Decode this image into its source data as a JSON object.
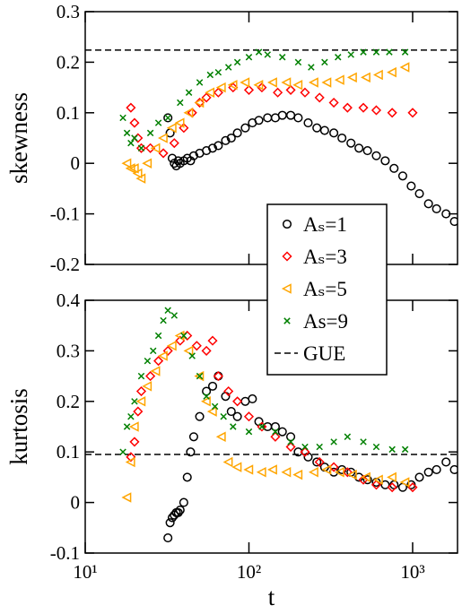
{
  "chart_data": [
    {
      "type": "scatter",
      "ylabel": "skewness",
      "xlog": true,
      "xlim": [
        10,
        1880
      ],
      "xticks": [
        10,
        100,
        1000
      ],
      "show_xtick_labels": false,
      "ylim": [
        -0.2,
        0.3
      ],
      "yticks": [
        -0.2,
        -0.1,
        0,
        0.1,
        0.2,
        0.3
      ],
      "reference_line": {
        "name": "GUE",
        "value": 0.224,
        "color": "#000000",
        "style": "dashed"
      },
      "series": [
        {
          "name": "Aₛ=1",
          "color": "#000000",
          "marker": "circle",
          "x": [
            32,
            33,
            34,
            35,
            36,
            37,
            38,
            40,
            42,
            44,
            46,
            50,
            55,
            60,
            65,
            72,
            78,
            85,
            95,
            105,
            115,
            130,
            145,
            160,
            180,
            200,
            230,
            260,
            290,
            330,
            370,
            420,
            470,
            530,
            600,
            680,
            770,
            870,
            980,
            1100,
            1250,
            1400,
            1600,
            1800
          ],
          "values": [
            0.09,
            0.06,
            0.01,
            0,
            -0.005,
            0.005,
            0,
            0.005,
            0.01,
            0.005,
            0.015,
            0.02,
            0.025,
            0.03,
            0.035,
            0.045,
            0.05,
            0.06,
            0.07,
            0.08,
            0.085,
            0.09,
            0.09,
            0.095,
            0.095,
            0.09,
            0.08,
            0.07,
            0.065,
            0.06,
            0.05,
            0.04,
            0.03,
            0.025,
            0.015,
            0.005,
            -0.01,
            -0.025,
            -0.045,
            -0.06,
            -0.08,
            -0.09,
            -0.1,
            -0.115
          ]
        },
        {
          "name": "Aₛ=3",
          "color": "#ff0000",
          "marker": "diamond",
          "x": [
            19,
            20,
            21,
            22,
            25,
            30,
            35,
            40,
            45,
            50,
            55,
            65,
            80,
            100,
            120,
            150,
            180,
            220,
            270,
            330,
            400,
            500,
            600,
            750,
            1000
          ],
          "values": [
            0.11,
            0.08,
            0.05,
            0.03,
            0.03,
            0.02,
            0.04,
            0.07,
            0.1,
            0.12,
            0.13,
            0.14,
            0.15,
            0.145,
            0.15,
            0.14,
            0.145,
            0.14,
            0.13,
            0.12,
            0.11,
            0.11,
            0.105,
            0.1,
            0.1
          ]
        },
        {
          "name": "Aₛ=5",
          "color": "#ffa500",
          "marker": "triangle-left",
          "x": [
            18,
            19,
            20,
            21,
            22,
            24,
            27,
            30,
            34,
            38,
            43,
            50,
            58,
            68,
            80,
            95,
            115,
            140,
            170,
            200,
            250,
            300,
            360,
            430,
            520,
            620,
            750,
            900
          ],
          "values": [
            0,
            -0.01,
            -0.01,
            -0.02,
            -0.03,
            0,
            0.03,
            0.05,
            0.07,
            0.08,
            0.1,
            0.12,
            0.14,
            0.15,
            0.155,
            0.16,
            0.155,
            0.16,
            0.16,
            0.155,
            0.16,
            0.16,
            0.165,
            0.17,
            0.17,
            0.175,
            0.18,
            0.19
          ]
        },
        {
          "name": "As=9",
          "color": "#008000",
          "marker": "x",
          "x": [
            17,
            18,
            19,
            20,
            22,
            25,
            28,
            32,
            38,
            43,
            50,
            58,
            65,
            75,
            85,
            100,
            115,
            130,
            160,
            200,
            240,
            290,
            350,
            420,
            500,
            600,
            720,
            900
          ],
          "values": [
            0.09,
            0.06,
            0.04,
            0.05,
            0.03,
            0.06,
            0.08,
            0.09,
            0.12,
            0.14,
            0.16,
            0.175,
            0.18,
            0.19,
            0.2,
            0.21,
            0.22,
            0.215,
            0.21,
            0.2,
            0.19,
            0.2,
            0.21,
            0.215,
            0.22,
            0.22,
            0.22,
            0.22
          ]
        }
      ]
    },
    {
      "type": "scatter",
      "ylabel": "kurtosis",
      "xlabel": "t",
      "xlog": true,
      "xlim": [
        10,
        1880
      ],
      "xticks": [
        {
          "value": 10,
          "label": "10¹"
        },
        {
          "value": 100,
          "label": "10²"
        },
        {
          "value": 1000,
          "label": "10³"
        }
      ],
      "show_xtick_labels": true,
      "ylim": [
        -0.1,
        0.4
      ],
      "yticks": [
        -0.1,
        0,
        0.1,
        0.2,
        0.3,
        0.4
      ],
      "reference_line": {
        "value": 0.095,
        "color": "#000000",
        "style": "dashed"
      },
      "series": [
        {
          "color": "#000000",
          "marker": "circle",
          "x": [
            32,
            33,
            34,
            35,
            36,
            37,
            38,
            40,
            42,
            44,
            46,
            50,
            55,
            60,
            65,
            72,
            78,
            85,
            95,
            105,
            115,
            130,
            145,
            160,
            180,
            200,
            230,
            260,
            290,
            330,
            370,
            420,
            470,
            530,
            600,
            680,
            770,
            870,
            980,
            1100,
            1250,
            1400,
            1600,
            1800
          ],
          "values": [
            -0.07,
            -0.04,
            -0.03,
            -0.025,
            -0.02,
            -0.02,
            -0.015,
            0,
            0.05,
            0.1,
            0.13,
            0.17,
            0.22,
            0.23,
            0.25,
            0.21,
            0.18,
            0.17,
            0.2,
            0.205,
            0.16,
            0.15,
            0.15,
            0.14,
            0.13,
            0.1,
            0.09,
            0.08,
            0.07,
            0.06,
            0.065,
            0.06,
            0.05,
            0.045,
            0.04,
            0.035,
            0.035,
            0.03,
            0.035,
            0.05,
            0.06,
            0.065,
            0.08,
            0.065
          ]
        },
        {
          "color": "#ff0000",
          "marker": "diamond",
          "x": [
            19,
            20,
            21,
            22,
            25,
            28,
            32,
            38,
            42,
            48,
            55,
            60,
            65,
            75,
            85,
            100,
            120,
            145,
            180,
            220,
            270,
            330,
            400,
            500,
            600,
            750,
            1000
          ],
          "values": [
            0.09,
            0.12,
            0.18,
            0.22,
            0.25,
            0.28,
            0.3,
            0.32,
            0.33,
            0.31,
            0.3,
            0.32,
            0.25,
            0.22,
            0.2,
            0.17,
            0.15,
            0.13,
            0.11,
            0.1,
            0.08,
            0.07,
            0.06,
            0.045,
            0.035,
            0.03,
            0.03
          ]
        },
        {
          "color": "#ffa500",
          "marker": "triangle-left",
          "x": [
            18,
            19,
            20,
            22,
            24,
            27,
            30,
            34,
            38,
            43,
            50,
            55,
            60,
            68,
            75,
            85,
            100,
            120,
            140,
            170,
            200,
            250,
            300,
            360,
            430,
            520,
            620,
            750,
            900
          ],
          "values": [
            0.01,
            0.08,
            0.15,
            0.2,
            0.23,
            0.26,
            0.29,
            0.31,
            0.33,
            0.3,
            0.25,
            0.2,
            0.18,
            0.13,
            0.08,
            0.07,
            0.065,
            0.06,
            0.065,
            0.06,
            0.055,
            0.06,
            0.065,
            0.06,
            0.055,
            0.05,
            0.045,
            0.05,
            0.04
          ]
        },
        {
          "color": "#008000",
          "marker": "x",
          "x": [
            17,
            18,
            19,
            20,
            22,
            24,
            26,
            28,
            30,
            32,
            35,
            40,
            45,
            50,
            55,
            62,
            70,
            80,
            100,
            120,
            145,
            180,
            220,
            270,
            330,
            400,
            500,
            600,
            750,
            900
          ],
          "values": [
            0.1,
            0.15,
            0.17,
            0.2,
            0.25,
            0.28,
            0.3,
            0.33,
            0.36,
            0.38,
            0.37,
            0.33,
            0.29,
            0.25,
            0.21,
            0.19,
            0.17,
            0.15,
            0.14,
            0.15,
            0.14,
            0.12,
            0.11,
            0.11,
            0.12,
            0.13,
            0.12,
            0.11,
            0.105,
            0.105
          ]
        }
      ]
    }
  ]
}
